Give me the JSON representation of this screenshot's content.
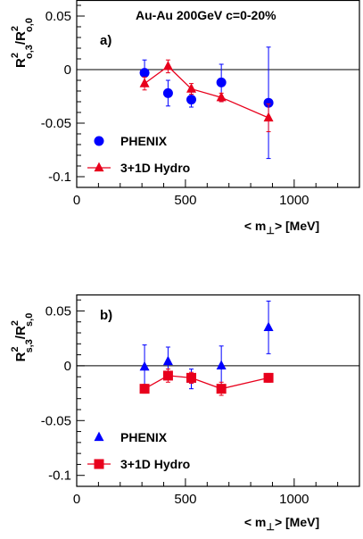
{
  "chart_data": [
    {
      "type": "scatter",
      "panel_label": "a)",
      "annotation": "Au-Au  200GeV  c=0-20%",
      "ylabel": {
        "base": "R",
        "sup": "2",
        "sub_num": "o,3",
        "sep": "/R",
        "sup2": "2",
        "sub_den": "o,0"
      },
      "xlabel": {
        "pre": "< m",
        "sub": "⊥",
        "post": ">",
        "unit": "[MeV]"
      },
      "xlim": [
        0,
        1300
      ],
      "ylim": [
        -0.11,
        0.065
      ],
      "xticks": [
        0,
        500,
        1000
      ],
      "xtick_labels": [
        "0",
        "500",
        "1000"
      ],
      "yticks": [
        -0.1,
        -0.05,
        0,
        0.05
      ],
      "ytick_labels": [
        "-0.1",
        "-0.05",
        "0",
        "0.05"
      ],
      "legend_position": "bottom-left",
      "series": [
        {
          "name": "PHENIX",
          "marker": "circle",
          "color": "#0000ff",
          "connected": false,
          "x": [
            312,
            420,
            527,
            665,
            882
          ],
          "y": [
            -0.003,
            -0.022,
            -0.028,
            -0.012,
            -0.031
          ],
          "err": [
            0.012,
            0.012,
            0.007,
            0.017,
            0.052
          ]
        },
        {
          "name": "3+1D Hydro",
          "marker": "triangle",
          "color": "#e8001c",
          "connected": true,
          "x": [
            312,
            420,
            527,
            665,
            882
          ],
          "y": [
            -0.013,
            0.003,
            -0.018,
            -0.026,
            -0.045
          ],
          "err": [
            0.006,
            0.006,
            0.005,
            0.004,
            0.013
          ]
        }
      ]
    },
    {
      "type": "scatter",
      "panel_label": "b)",
      "ylabel": {
        "base": "R",
        "sup": "2",
        "sub_num": "s,3",
        "sep": "/R",
        "sup2": "2",
        "sub_den": "s,0"
      },
      "xlabel": {
        "pre": "< m",
        "sub": "⊥",
        "post": ">",
        "unit": "[MeV]"
      },
      "xlim": [
        0,
        1300
      ],
      "ylim": [
        -0.11,
        0.065
      ],
      "xticks": [
        0,
        500,
        1000
      ],
      "xtick_labels": [
        "0",
        "500",
        "1000"
      ],
      "yticks": [
        -0.1,
        -0.05,
        0,
        0.05
      ],
      "ytick_labels": [
        "-0.1",
        "-0.05",
        "0",
        "0.05"
      ],
      "legend_position": "bottom-left",
      "series": [
        {
          "name": "PHENIX",
          "marker": "triangle",
          "color": "#0000ff",
          "connected": false,
          "x": [
            312,
            420,
            527,
            665,
            882
          ],
          "y": [
            -0.001,
            0.004,
            -0.012,
            0.0,
            0.035
          ],
          "err": [
            0.02,
            0.013,
            0.009,
            0.018,
            0.024
          ]
        },
        {
          "name": "3+1D Hydro",
          "marker": "square",
          "color": "#e8001c",
          "connected": true,
          "x": [
            312,
            420,
            527,
            665,
            882
          ],
          "y": [
            -0.021,
            -0.009,
            -0.011,
            -0.021,
            -0.011
          ],
          "err": [
            0.004,
            0.006,
            0.005,
            0.006,
            0.004
          ]
        }
      ]
    }
  ]
}
